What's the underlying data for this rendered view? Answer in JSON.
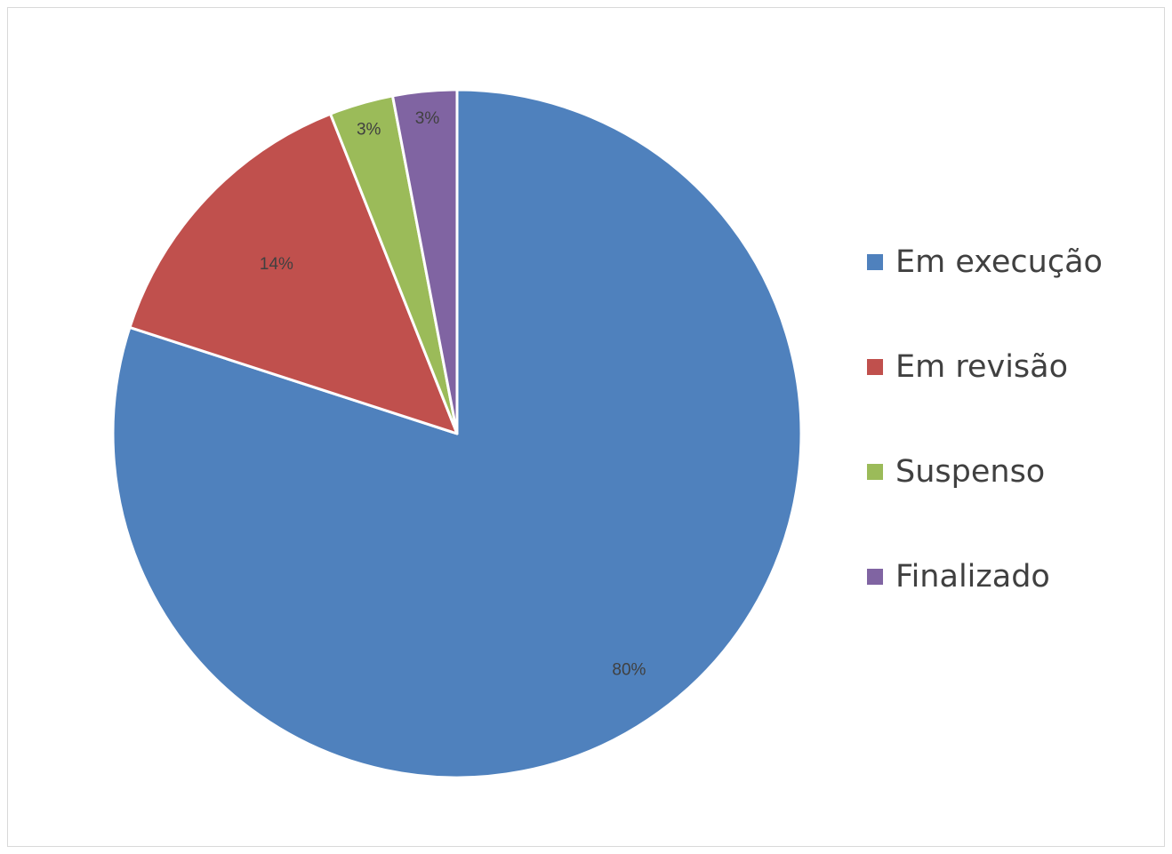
{
  "chart_data": {
    "type": "pie",
    "categories": [
      "Em execução",
      "Em revisão",
      "Suspenso",
      "Finalizado"
    ],
    "values": [
      80,
      14,
      3,
      3
    ],
    "data_labels": [
      "80%",
      "14%",
      "3%",
      "3%"
    ],
    "colors": [
      "#4f81bd",
      "#c0504d",
      "#9bbb59",
      "#8064a2"
    ],
    "start_angle": "top (12 o'clock), clockwise",
    "legend_position": "right",
    "title": ""
  }
}
